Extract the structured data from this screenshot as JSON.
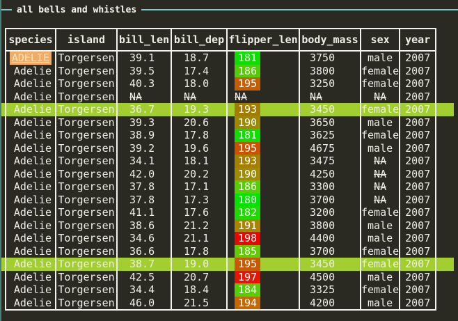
{
  "panel": {
    "title": "all bells and whistles",
    "colors": {
      "background": "#2a2a23",
      "accent_line": "#7cd0ca",
      "left_border": "#47807c",
      "table_border": "#f4f3ee",
      "text": "#eeede6",
      "row_highlight": "#a3ce2f",
      "cursor_bg": "#f2ab64",
      "cursor_text": "#ffe4bc"
    }
  },
  "table": {
    "columns": [
      "species",
      "island",
      "bill_len",
      "bill_dep",
      "flipper_len",
      "body_mass",
      "sex",
      "year"
    ],
    "rows": [
      {
        "species": "ADELIE",
        "island": "Torgersen",
        "bill_len": "39.1",
        "bill_dep": "18.7",
        "flipper_len": "181",
        "flipper_color": "#0ddf00",
        "body_mass": "3750",
        "sex": "male",
        "year": "2007",
        "cursor": true,
        "highlighted": false
      },
      {
        "species": "Adelie",
        "island": "Torgersen",
        "bill_len": "39.5",
        "bill_dep": "17.4",
        "flipper_len": "186",
        "flipper_color": "#53cd00",
        "body_mass": "3800",
        "sex": "female",
        "year": "2007",
        "cursor": false,
        "highlighted": false
      },
      {
        "species": "Adelie",
        "island": "Torgersen",
        "bill_len": "40.3",
        "bill_dep": "18.0",
        "flipper_len": "195",
        "flipper_color": "#c75f00",
        "body_mass": "3250",
        "sex": "female",
        "year": "2007",
        "cursor": false,
        "highlighted": false
      },
      {
        "species": "Adelie",
        "island": "Torgersen",
        "bill_len": "NA",
        "bill_dep": "NA",
        "flipper_len": "NA",
        "flipper_color": null,
        "body_mass": "NA",
        "sex": "NA",
        "year": "2007",
        "cursor": false,
        "highlighted": false
      },
      {
        "species": "Adelie",
        "island": "Torgersen",
        "bill_len": "36.7",
        "bill_dep": "19.3",
        "flipper_len": "193",
        "flipper_color": "#a17c00",
        "body_mass": "3450",
        "sex": "female",
        "year": "2007",
        "cursor": false,
        "highlighted": true
      },
      {
        "species": "Adelie",
        "island": "Torgersen",
        "bill_len": "39.3",
        "bill_dep": "20.6",
        "flipper_len": "190",
        "flipper_color": "#9b8a00",
        "body_mass": "3650",
        "sex": "male",
        "year": "2007",
        "cursor": false,
        "highlighted": false
      },
      {
        "species": "Adelie",
        "island": "Torgersen",
        "bill_len": "38.9",
        "bill_dep": "17.8",
        "flipper_len": "181",
        "flipper_color": "#0ddf00",
        "body_mass": "3625",
        "sex": "female",
        "year": "2007",
        "cursor": false,
        "highlighted": false
      },
      {
        "species": "Adelie",
        "island": "Torgersen",
        "bill_len": "39.2",
        "bill_dep": "19.6",
        "flipper_len": "195",
        "flipper_color": "#cc5200",
        "body_mass": "4675",
        "sex": "male",
        "year": "2007",
        "cursor": false,
        "highlighted": false
      },
      {
        "species": "Adelie",
        "island": "Torgersen",
        "bill_len": "34.1",
        "bill_dep": "18.1",
        "flipper_len": "193",
        "flipper_color": "#a57f00",
        "body_mass": "3475",
        "sex": "NA",
        "year": "2007",
        "cursor": false,
        "highlighted": false
      },
      {
        "species": "Adelie",
        "island": "Torgersen",
        "bill_len": "42.0",
        "bill_dep": "20.2",
        "flipper_len": "190",
        "flipper_color": "#9f8c00",
        "body_mass": "4250",
        "sex": "NA",
        "year": "2007",
        "cursor": false,
        "highlighted": false
      },
      {
        "species": "Adelie",
        "island": "Torgersen",
        "bill_len": "37.8",
        "bill_dep": "17.1",
        "flipper_len": "186",
        "flipper_color": "#57ce00",
        "body_mass": "3300",
        "sex": "NA",
        "year": "2007",
        "cursor": false,
        "highlighted": false
      },
      {
        "species": "Adelie",
        "island": "Torgersen",
        "bill_len": "37.8",
        "bill_dep": "17.3",
        "flipper_len": "180",
        "flipper_color": "#00e400",
        "body_mass": "3700",
        "sex": "NA",
        "year": "2007",
        "cursor": false,
        "highlighted": false
      },
      {
        "species": "Adelie",
        "island": "Torgersen",
        "bill_len": "41.1",
        "bill_dep": "17.6",
        "flipper_len": "182",
        "flipper_color": "#1eda00",
        "body_mass": "3200",
        "sex": "female",
        "year": "2007",
        "cursor": false,
        "highlighted": false
      },
      {
        "species": "Adelie",
        "island": "Torgersen",
        "bill_len": "38.6",
        "bill_dep": "21.2",
        "flipper_len": "191",
        "flipper_color": "#a88400",
        "body_mass": "3800",
        "sex": "male",
        "year": "2007",
        "cursor": false,
        "highlighted": false
      },
      {
        "species": "Adelie",
        "island": "Torgersen",
        "bill_len": "34.6",
        "bill_dep": "21.1",
        "flipper_len": "198",
        "flipper_color": "#ee0400",
        "body_mass": "4400",
        "sex": "male",
        "year": "2007",
        "cursor": false,
        "highlighted": false
      },
      {
        "species": "Adelie",
        "island": "Torgersen",
        "bill_len": "36.6",
        "bill_dep": "17.8",
        "flipper_len": "185",
        "flipper_color": "#60cc00",
        "body_mass": "3700",
        "sex": "female",
        "year": "2007",
        "cursor": false,
        "highlighted": false
      },
      {
        "species": "Adelie",
        "island": "Torgersen",
        "bill_len": "38.7",
        "bill_dep": "19.0",
        "flipper_len": "195",
        "flipper_color": "#c75a00",
        "body_mass": "3450",
        "sex": "female",
        "year": "2007",
        "cursor": false,
        "highlighted": true
      },
      {
        "species": "Adelie",
        "island": "Torgersen",
        "bill_len": "42.5",
        "bill_dep": "20.7",
        "flipper_len": "197",
        "flipper_color": "#e91400",
        "body_mass": "4500",
        "sex": "male",
        "year": "2007",
        "cursor": false,
        "highlighted": false
      },
      {
        "species": "Adelie",
        "island": "Torgersen",
        "bill_len": "34.4",
        "bill_dep": "18.4",
        "flipper_len": "184",
        "flipper_color": "#52d000",
        "body_mass": "3325",
        "sex": "female",
        "year": "2007",
        "cursor": false,
        "highlighted": false
      },
      {
        "species": "Adelie",
        "island": "Torgersen",
        "bill_len": "46.0",
        "bill_dep": "21.5",
        "flipper_len": "194",
        "flipper_color": "#c66700",
        "body_mass": "4200",
        "sex": "male",
        "year": "2007",
        "cursor": false,
        "highlighted": false
      }
    ]
  }
}
